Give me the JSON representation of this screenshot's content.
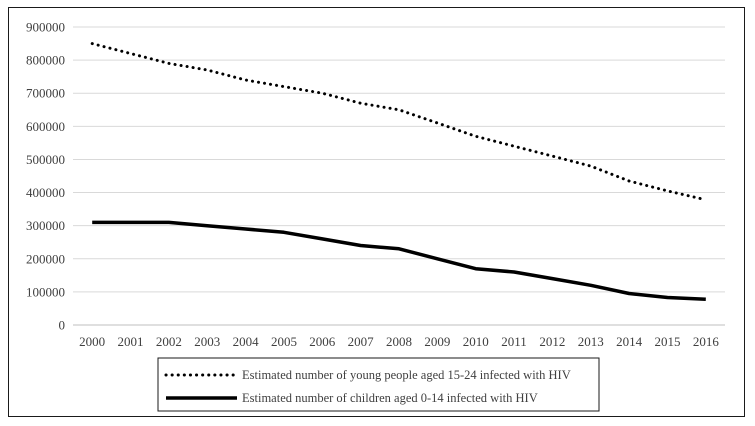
{
  "chart_data": {
    "type": "line",
    "title": "",
    "xlabel": "",
    "ylabel": "",
    "ylim": [
      0,
      900000
    ],
    "yticks": [
      0,
      100000,
      200000,
      300000,
      400000,
      500000,
      600000,
      700000,
      800000,
      900000
    ],
    "grid": true,
    "legend_position": "bottom-center",
    "categories": [
      "2000",
      "2001",
      "2002",
      "2003",
      "2004",
      "2005",
      "2006",
      "2007",
      "2008",
      "2009",
      "2010",
      "2011",
      "2012",
      "2013",
      "2014",
      "2015",
      "2016"
    ],
    "series": [
      {
        "name": "Estimated number of young people aged 15-24 infected with HIV",
        "style": "dotted",
        "color": "#000000",
        "values": [
          850000,
          820000,
          790000,
          770000,
          740000,
          720000,
          700000,
          670000,
          650000,
          610000,
          570000,
          540000,
          510000,
          480000,
          435000,
          405000,
          378000
        ]
      },
      {
        "name": "Estimated number of children aged 0-14 infected with HIV",
        "style": "solid",
        "color": "#000000",
        "values": [
          310000,
          310000,
          310000,
          300000,
          290000,
          280000,
          260000,
          240000,
          230000,
          200000,
          170000,
          160000,
          140000,
          120000,
          95000,
          83000,
          78000
        ]
      }
    ]
  }
}
